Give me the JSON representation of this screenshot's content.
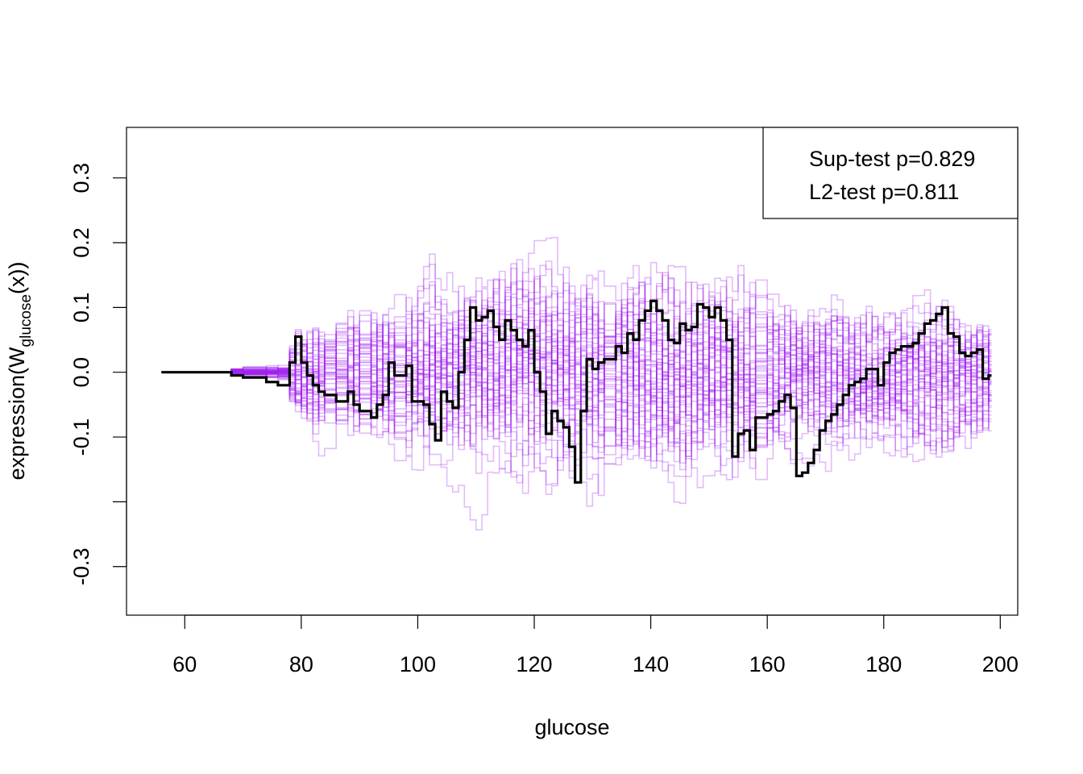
{
  "chart_data": {
    "type": "line",
    "xlabel": "glucose",
    "ylabel_prefix": "expression(W",
    "ylabel_subscript": "glucose",
    "ylabel_suffix": "(x))",
    "xlim": [
      50,
      203
    ],
    "ylim": [
      -0.375,
      0.378
    ],
    "x_ticks": [
      60,
      80,
      100,
      120,
      140,
      160,
      180,
      200
    ],
    "x_tick_labels": [
      "60",
      "80",
      "100",
      "120",
      "140",
      "160",
      "180",
      "200"
    ],
    "y_ticks": [
      -0.3,
      -0.2,
      -0.1,
      0.0,
      0.1,
      0.2,
      0.3
    ],
    "y_tick_labels": [
      "-0.3",
      "",
      "-0.1",
      "0.0",
      "0.1",
      "0.2",
      "0.3"
    ],
    "grid": false,
    "legend_position": "top-right",
    "legend_lines": [
      "Sup-test p=0.829",
      "L2-test p=0.811"
    ],
    "colors": {
      "observed": "#000000",
      "simulated": "#A020F0",
      "simulated_opacity": 0.3
    },
    "series": [
      {
        "role": "observed",
        "step": true,
        "x": [
          56,
          68,
          70,
          74,
          76,
          78,
          79,
          80,
          81,
          82,
          83,
          84,
          86,
          88,
          89,
          90,
          92,
          93,
          94,
          95,
          96,
          98,
          99,
          100,
          101,
          102,
          103,
          104,
          105,
          106,
          107,
          108,
          109,
          110,
          111,
          112,
          113,
          114,
          115,
          116,
          117,
          118,
          119,
          120,
          121,
          122,
          123,
          124,
          125,
          126,
          127,
          128,
          129,
          130,
          131,
          132,
          134,
          135,
          136,
          137,
          138,
          139,
          140,
          141,
          142,
          143,
          144,
          145,
          146,
          147,
          148,
          149,
          150,
          151,
          152,
          153,
          154,
          155,
          156,
          157,
          158,
          160,
          161,
          162,
          163,
          164,
          165,
          166,
          167,
          168,
          169,
          170,
          171,
          172,
          173,
          174,
          175,
          176,
          177,
          178,
          179,
          180,
          181,
          182,
          183,
          184,
          185,
          186,
          187,
          188,
          189,
          190,
          191,
          192,
          193,
          194,
          195,
          196,
          197,
          198
        ],
        "y": [
          0.0,
          -0.005,
          -0.008,
          -0.015,
          -0.02,
          0.015,
          0.055,
          0.015,
          -0.005,
          -0.02,
          -0.03,
          -0.035,
          -0.045,
          -0.03,
          -0.05,
          -0.06,
          -0.07,
          -0.05,
          -0.035,
          0.015,
          -0.005,
          0.01,
          -0.045,
          -0.045,
          -0.05,
          -0.08,
          -0.105,
          -0.03,
          -0.045,
          -0.055,
          0.0,
          0.05,
          0.1,
          0.08,
          0.085,
          0.095,
          0.07,
          0.05,
          0.08,
          0.065,
          0.05,
          0.04,
          0.065,
          0.0,
          -0.03,
          -0.095,
          -0.06,
          -0.075,
          -0.085,
          -0.115,
          -0.17,
          -0.06,
          0.02,
          0.005,
          0.015,
          0.02,
          0.04,
          0.03,
          0.06,
          0.05,
          0.08,
          0.095,
          0.11,
          0.095,
          0.08,
          0.05,
          0.045,
          0.075,
          0.065,
          0.07,
          0.105,
          0.1,
          0.085,
          0.1,
          0.08,
          0.05,
          -0.13,
          -0.095,
          -0.09,
          -0.12,
          -0.07,
          -0.065,
          -0.06,
          -0.045,
          -0.035,
          -0.055,
          -0.16,
          -0.155,
          -0.14,
          -0.12,
          -0.09,
          -0.075,
          -0.065,
          -0.05,
          -0.035,
          -0.02,
          -0.015,
          -0.01,
          0.005,
          0.005,
          -0.02,
          0.015,
          0.03,
          0.035,
          0.04,
          0.04,
          0.045,
          0.06,
          0.075,
          0.08,
          0.09,
          0.1,
          0.06,
          0.055,
          0.03,
          0.025,
          0.03,
          0.035,
          -0.01,
          -0.005
        ]
      }
    ]
  }
}
